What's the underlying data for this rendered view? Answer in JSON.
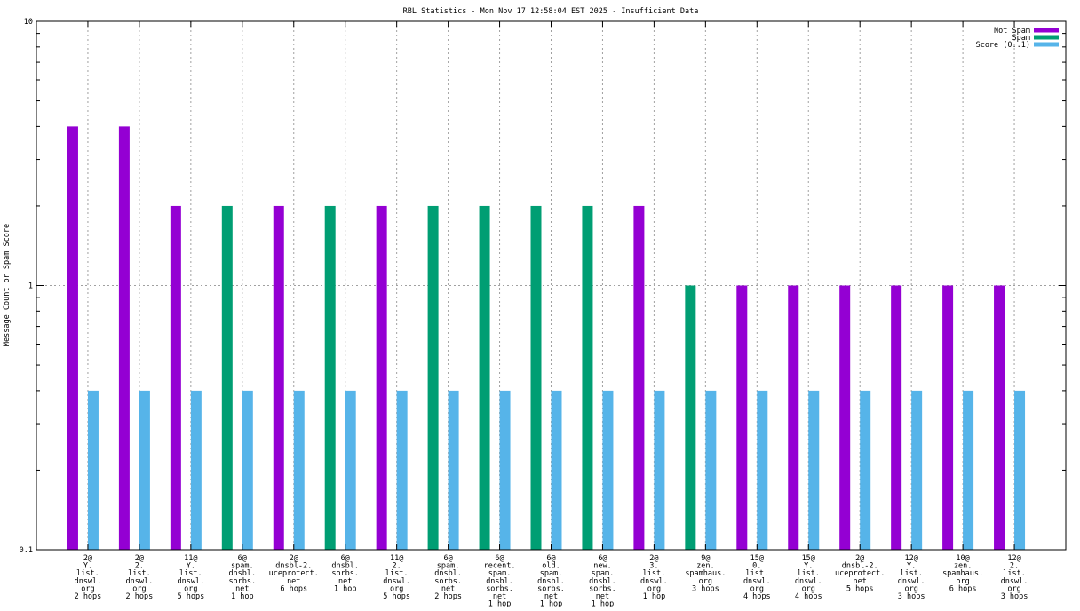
{
  "chart_data": {
    "type": "bar",
    "title": "RBL Statistics - Mon Nov 17 12:58:04 EST 2025 - Insufficient Data",
    "ylabel": "Message Count or Spam Score",
    "xlabel": "",
    "yscale": "log",
    "ylim": [
      0.1,
      10
    ],
    "yticks": [
      0.1,
      1,
      10
    ],
    "ytick_labels": [
      "0.1",
      "1",
      "10"
    ],
    "grid": true,
    "legend_position": "top-right",
    "categories": [
      [
        "2@",
        "Y.",
        "list.",
        "dnswl.",
        "org",
        "2 hops"
      ],
      [
        "2@",
        "2.",
        "list.",
        "dnswl.",
        "org",
        "2 hops"
      ],
      [
        "11@",
        "Y.",
        "list.",
        "dnswl.",
        "org",
        "5 hops"
      ],
      [
        "6@",
        "spam.",
        "dnsbl.",
        "sorbs.",
        "net",
        "1 hop"
      ],
      [
        "2@",
        "dnsbl-2.",
        "uceprotect.",
        "net",
        "6 hops"
      ],
      [
        "6@",
        "dnsbl.",
        "sorbs.",
        "net",
        "1 hop"
      ],
      [
        "11@",
        "2.",
        "list.",
        "dnswl.",
        "org",
        "5 hops"
      ],
      [
        "6@",
        "spam.",
        "dnsbl.",
        "sorbs.",
        "net",
        "2 hops"
      ],
      [
        "6@",
        "recent.",
        "spam.",
        "dnsbl.",
        "sorbs.",
        "net",
        "1 hop"
      ],
      [
        "6@",
        "old.",
        "spam.",
        "dnsbl.",
        "sorbs.",
        "net",
        "1 hop"
      ],
      [
        "6@",
        "new.",
        "spam.",
        "dnsbl.",
        "sorbs.",
        "net",
        "1 hop"
      ],
      [
        "2@",
        "3.",
        "list.",
        "dnswl.",
        "org",
        "1 hop"
      ],
      [
        "9@",
        "zen.",
        "spamhaus.",
        "org",
        "3 hops"
      ],
      [
        "15@",
        "0.",
        "list.",
        "dnswl.",
        "org",
        "4 hops"
      ],
      [
        "15@",
        "Y.",
        "list.",
        "dnswl.",
        "org",
        "4 hops"
      ],
      [
        "2@",
        "dnsbl-2.",
        "uceprotect.",
        "net",
        "5 hops"
      ],
      [
        "12@",
        "Y.",
        "list.",
        "dnswl.",
        "org",
        "3 hops"
      ],
      [
        "10@",
        "zen.",
        "spamhaus.",
        "org",
        "6 hops"
      ],
      [
        "12@",
        "2.",
        "list.",
        "dnswl.",
        "org",
        "3 hops"
      ]
    ],
    "series": [
      {
        "name": "Not Spam",
        "color": "#9400d3",
        "values": [
          4,
          4,
          2,
          null,
          2,
          null,
          2,
          null,
          null,
          null,
          null,
          2,
          null,
          1,
          1,
          1,
          1,
          1,
          1
        ]
      },
      {
        "name": "Spam",
        "color": "#009e73",
        "values": [
          null,
          null,
          null,
          2,
          null,
          2,
          null,
          2,
          2,
          2,
          2,
          null,
          1,
          null,
          null,
          null,
          null,
          null,
          null
        ]
      },
      {
        "name": "Score (0..1)",
        "color": "#56b4e9",
        "values": [
          0.4,
          0.4,
          0.4,
          0.4,
          0.4,
          0.4,
          0.4,
          0.4,
          0.4,
          0.4,
          0.4,
          0.4,
          0.4,
          0.4,
          0.4,
          0.4,
          0.4,
          0.4,
          0.4
        ]
      }
    ]
  }
}
